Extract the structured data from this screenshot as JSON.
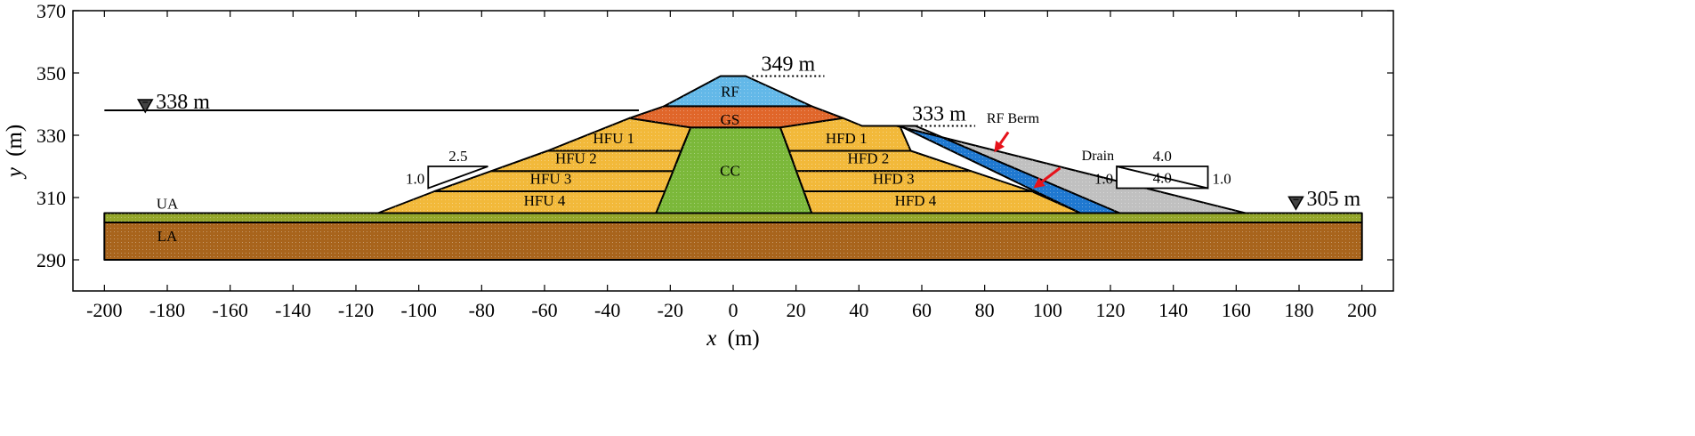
{
  "axes": {
    "xlabel": "x",
    "xunit": "(m)",
    "ylabel": "y",
    "yunit": "(m)",
    "xlim": [
      -210,
      210
    ],
    "ylim": [
      280,
      370
    ],
    "xticks": [
      -200,
      -180,
      -160,
      -140,
      -120,
      -100,
      -80,
      -60,
      -40,
      -20,
      0,
      20,
      40,
      60,
      80,
      100,
      120,
      140,
      160,
      180,
      200
    ],
    "yticks": [
      290,
      310,
      330,
      350,
      370
    ]
  },
  "colors": {
    "rf": "#63b8e8",
    "gs": "#e0662a",
    "cc": "#7bb83a",
    "hf": "#f2b93a",
    "berm": "#c0c0c0",
    "drain": "#1f78d0",
    "ua": "#94a62a",
    "la": "#a8641c",
    "arrow": "#e6121a"
  },
  "zones": [
    {
      "id": "la",
      "label": "LA",
      "color": "la",
      "label_pos": [
        -180,
        296
      ],
      "label_size": 17,
      "points": [
        [
          -200,
          290
        ],
        [
          200,
          290
        ],
        [
          200,
          302
        ],
        [
          -200,
          302
        ]
      ]
    },
    {
      "id": "ua",
      "label": "UA",
      "color": "ua",
      "label_pos": [
        -180,
        306.5
      ],
      "label_size": 17,
      "points": [
        [
          -200,
          302
        ],
        [
          200,
          302
        ],
        [
          200,
          305
        ],
        [
          -200,
          305
        ]
      ]
    },
    {
      "id": "hfu4",
      "label": "HFU 4",
      "color": "hf",
      "label_pos": [
        -60,
        307.5
      ],
      "label_size": 17,
      "points": [
        [
          -113,
          305
        ],
        [
          -24.5,
          305
        ],
        [
          -21.6,
          312
        ],
        [
          -95,
          312
        ]
      ]
    },
    {
      "id": "hfu3",
      "label": "HFU 3",
      "color": "hf",
      "label_pos": [
        -58,
        314.5
      ],
      "label_size": 17,
      "points": [
        [
          -95,
          312
        ],
        [
          -21.6,
          312
        ],
        [
          -19.1,
          318.5
        ],
        [
          -77,
          318.5
        ]
      ]
    },
    {
      "id": "hfu2",
      "label": "HFU 2",
      "color": "hf",
      "label_pos": [
        -50,
        321
      ],
      "label_size": 17,
      "points": [
        [
          -77,
          318.5
        ],
        [
          -19.1,
          318.5
        ],
        [
          -16.6,
          325
        ],
        [
          -59,
          325
        ]
      ]
    },
    {
      "id": "hfu1",
      "label": "HFU 1",
      "color": "hf",
      "label_pos": [
        -38,
        327.5
      ],
      "label_size": 17,
      "points": [
        [
          -59,
          325
        ],
        [
          -16.6,
          325
        ],
        [
          -13.5,
          332.5
        ],
        [
          -33,
          335.5
        ]
      ]
    },
    {
      "id": "cc",
      "label": "CC",
      "color": "cc",
      "label_pos": [
        -1,
        317
      ],
      "label_size": 17,
      "points": [
        [
          -24.5,
          305
        ],
        [
          25,
          305
        ],
        [
          15,
          332.5
        ],
        [
          -13.5,
          332.5
        ]
      ]
    },
    {
      "id": "gs",
      "label": "GS",
      "color": "gs",
      "label_pos": [
        -1,
        333.5
      ],
      "label_size": 17,
      "points": [
        [
          -33,
          335.5
        ],
        [
          -22,
          339.3
        ],
        [
          25,
          339.3
        ],
        [
          35,
          335.5
        ],
        [
          15,
          332.5
        ],
        [
          -13.5,
          332.5
        ]
      ]
    },
    {
      "id": "rf",
      "label": "RF",
      "color": "rf",
      "label_pos": [
        -1,
        342.5
      ],
      "label_size": 17,
      "points": [
        [
          -22,
          339.3
        ],
        [
          -4,
          349
        ],
        [
          4,
          349
        ],
        [
          25,
          339.3
        ]
      ]
    },
    {
      "id": "hfd1",
      "label": "HFD 1",
      "color": "hf",
      "label_pos": [
        36,
        327.5
      ],
      "label_size": 17,
      "points": [
        [
          15,
          332.5
        ],
        [
          35,
          335.5
        ],
        [
          41,
          333
        ],
        [
          53,
          333
        ],
        [
          56.5,
          325
        ],
        [
          17.8,
          325
        ]
      ]
    },
    {
      "id": "hfd2",
      "label": "HFD 2",
      "color": "hf",
      "label_pos": [
        43,
        321
      ],
      "label_size": 17,
      "points": [
        [
          17.8,
          325
        ],
        [
          56.5,
          325
        ],
        [
          75.7,
          318.5
        ],
        [
          20.1,
          318.5
        ]
      ]
    },
    {
      "id": "hfd3",
      "label": "HFD 3",
      "color": "hf",
      "label_pos": [
        51,
        314.5
      ],
      "label_size": 17,
      "points": [
        [
          20.1,
          318.5
        ],
        [
          75.7,
          318.5
        ],
        [
          94.9,
          312
        ],
        [
          22.5,
          312
        ]
      ]
    },
    {
      "id": "hfd4",
      "label": "HFD 4",
      "color": "hf",
      "label_pos": [
        58,
        307.5
      ],
      "label_size": 17,
      "points": [
        [
          22.5,
          312
        ],
        [
          94.9,
          312
        ],
        [
          110.5,
          305
        ],
        [
          25,
          305
        ]
      ]
    },
    {
      "id": "drain",
      "label": "",
      "color": "drain",
      "label_pos": null,
      "label_size": 15,
      "points": [
        [
          53,
          333
        ],
        [
          58,
          333
        ],
        [
          123,
          305
        ],
        [
          110.5,
          305
        ]
      ]
    },
    {
      "id": "berm",
      "label": "",
      "color": "berm",
      "label_pos": null,
      "label_size": 15,
      "points": [
        [
          41,
          333
        ],
        [
          52,
          333
        ],
        [
          163,
          305
        ],
        [
          123,
          305
        ],
        [
          58,
          333
        ]
      ]
    }
  ],
  "water": {
    "upstream": {
      "label": "338 m",
      "y": 338,
      "x_start": -200,
      "x_end": -30,
      "marker_x": -187
    },
    "downstream": {
      "label": "305 m",
      "y": 305,
      "marker_x": 179
    }
  },
  "elevations": [
    {
      "label": "349 m",
      "x_start": 6,
      "x_end": 29,
      "y": 349
    },
    {
      "label": "333 m",
      "x_start": 54,
      "x_end": 77,
      "y": 333
    }
  ],
  "slopes": [
    {
      "id": "upstream-slope",
      "h_label": "2.5",
      "v_label": "1.0",
      "p_right": [
        -78,
        320
      ],
      "p_left": [
        -97,
        313
      ]
    },
    {
      "id": "downstream-slope",
      "h_label": "4.0",
      "v_label": "1.0",
      "p_left": [
        122,
        320
      ],
      "p_right": [
        151,
        313
      ]
    }
  ],
  "callouts": [
    {
      "id": "rf-berm",
      "label": "RF Berm",
      "text_pos": [
        89,
        334
      ],
      "arrow_from": [
        87.5,
        331
      ],
      "arrow_to": [
        83,
        324.5
      ]
    },
    {
      "id": "drain",
      "label": "Drain",
      "text_pos": [
        116,
        322
      ],
      "arrow_from": [
        104,
        319.5
      ],
      "arrow_to": [
        95.5,
        313
      ]
    }
  ]
}
